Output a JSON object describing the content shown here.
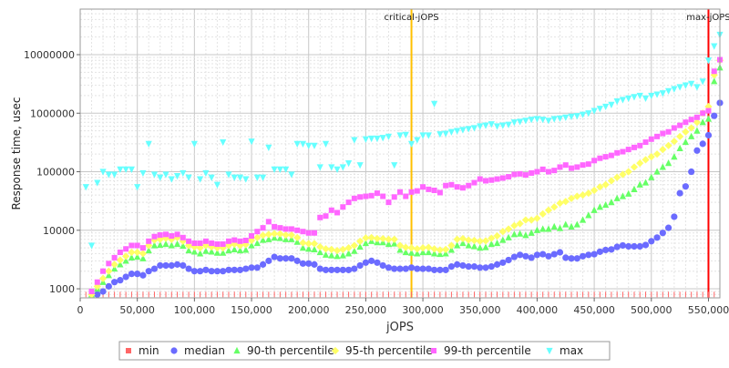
{
  "chart_data": {
    "type": "scatter",
    "title": "",
    "xlabel": "jOPS",
    "ylabel": "Response time, usec",
    "xlim": [
      0,
      560000
    ],
    "ylim": [
      700,
      60000000
    ],
    "y_scale": "log",
    "grid": true,
    "legend_position": "bottom",
    "x_ticks": [
      0,
      50000,
      100000,
      150000,
      200000,
      250000,
      300000,
      350000,
      400000,
      450000,
      500000,
      550000
    ],
    "x_tick_labels": [
      "0",
      "50,000",
      "100,000",
      "150,000",
      "200,000",
      "250,000",
      "300,000",
      "350,000",
      "400,000",
      "450,000",
      "500,000",
      "550,000"
    ],
    "y_ticks": [
      1000,
      10000,
      100000,
      1000000,
      10000000
    ],
    "y_tick_labels": [
      "1000",
      "10000",
      "100000",
      "1000000",
      "10000000"
    ],
    "vlines": [
      {
        "label": "critical-jOPS",
        "x": 290000,
        "color": "#ffc000"
      },
      {
        "label": "max-jOPS",
        "x": 550000,
        "color": "#ff0000"
      }
    ],
    "x": [
      5000,
      10000,
      15000,
      20000,
      25000,
      30000,
      35000,
      40000,
      45000,
      50000,
      55000,
      60000,
      65000,
      70000,
      75000,
      80000,
      85000,
      90000,
      95000,
      100000,
      105000,
      110000,
      115000,
      120000,
      125000,
      130000,
      135000,
      140000,
      145000,
      150000,
      155000,
      160000,
      165000,
      170000,
      175000,
      180000,
      185000,
      190000,
      195000,
      200000,
      205000,
      210000,
      215000,
      220000,
      225000,
      230000,
      235000,
      240000,
      245000,
      250000,
      255000,
      260000,
      265000,
      270000,
      275000,
      280000,
      285000,
      290000,
      295000,
      300000,
      305000,
      310000,
      315000,
      320000,
      325000,
      330000,
      335000,
      340000,
      345000,
      350000,
      355000,
      360000,
      365000,
      370000,
      375000,
      380000,
      385000,
      390000,
      395000,
      400000,
      405000,
      410000,
      415000,
      420000,
      425000,
      430000,
      435000,
      440000,
      445000,
      450000,
      455000,
      460000,
      465000,
      470000,
      475000,
      480000,
      485000,
      490000,
      495000,
      500000,
      505000,
      510000,
      515000,
      520000,
      525000,
      530000,
      535000,
      540000,
      545000,
      550000,
      555000,
      560000
    ],
    "series": [
      {
        "name": "min",
        "color": "#ff6666",
        "marker": "square",
        "values": [
          800,
          800,
          800,
          800,
          800,
          800,
          800,
          800,
          800,
          800,
          800,
          800,
          800,
          800,
          800,
          800,
          800,
          800,
          800,
          800,
          800,
          800,
          800,
          800,
          800,
          800,
          800,
          800,
          800,
          800,
          800,
          800,
          800,
          800,
          800,
          800,
          800,
          800,
          800,
          800,
          800,
          800,
          800,
          800,
          800,
          800,
          800,
          800,
          800,
          800,
          800,
          800,
          800,
          800,
          800,
          800,
          800,
          800,
          800,
          800,
          800,
          800,
          800,
          800,
          800,
          800,
          800,
          800,
          800,
          800,
          800,
          800,
          800,
          800,
          800,
          800,
          800,
          800,
          800,
          800,
          800,
          800,
          800,
          800,
          800,
          800,
          800,
          800,
          800,
          800,
          800,
          800,
          800,
          800,
          800,
          800,
          800,
          800,
          800,
          800,
          800,
          800,
          800,
          800,
          800,
          800,
          800,
          800,
          800,
          800,
          800,
          800
        ]
      },
      {
        "name": "median",
        "color": "#6b6bff",
        "marker": "circle",
        "values": [
          null,
          null,
          800,
          900,
          1100,
          1300,
          1400,
          1600,
          1800,
          1800,
          1700,
          2000,
          2200,
          2500,
          2500,
          2500,
          2600,
          2500,
          2200,
          2000,
          2000,
          2100,
          2000,
          2000,
          2000,
          2100,
          2100,
          2100,
          2200,
          2300,
          2300,
          2600,
          3000,
          3500,
          3300,
          3300,
          3300,
          3000,
          2700,
          2700,
          2600,
          2200,
          2100,
          2100,
          2100,
          2100,
          2100,
          2200,
          2500,
          2800,
          3000,
          2800,
          2500,
          2300,
          2200,
          2200,
          2200,
          2300,
          2200,
          2200,
          2200,
          2100,
          2100,
          2100,
          2400,
          2600,
          2500,
          2400,
          2400,
          2300,
          2300,
          2400,
          2600,
          2800,
          3100,
          3500,
          3800,
          3600,
          3400,
          3800,
          3900,
          3600,
          3900,
          4200,
          3400,
          3300,
          3300,
          3600,
          3800,
          3900,
          4300,
          4600,
          4700,
          5200,
          5500,
          5300,
          5300,
          5300,
          5600,
          6500,
          7500,
          9000,
          11000,
          17000,
          43000,
          56000,
          100000,
          230000,
          300000,
          420000,
          900000,
          1500000
        ]
      },
      {
        "name": "90-th percentile",
        "color": "#66ff66",
        "marker": "triangle",
        "values": [
          null,
          800,
          1000,
          1300,
          1700,
          2200,
          2600,
          3000,
          3400,
          3500,
          3300,
          4500,
          5500,
          5600,
          5800,
          5500,
          5800,
          5400,
          4500,
          4300,
          4000,
          4400,
          4300,
          4100,
          4100,
          4500,
          4700,
          4500,
          4600,
          5500,
          6000,
          6800,
          7000,
          7400,
          7300,
          7000,
          7000,
          6300,
          5000,
          4800,
          4700,
          4200,
          3800,
          3700,
          3600,
          3700,
          4000,
          4400,
          5200,
          6000,
          6500,
          6200,
          6200,
          5800,
          5900,
          4600,
          4200,
          4100,
          4000,
          4200,
          4200,
          4000,
          3900,
          4000,
          4600,
          5500,
          6000,
          5500,
          5300,
          5000,
          5100,
          5800,
          6000,
          6800,
          7500,
          8500,
          8700,
          8200,
          9000,
          10000,
          10500,
          10500,
          11500,
          10800,
          12500,
          11500,
          12500,
          15000,
          18000,
          22000,
          25000,
          27000,
          30000,
          35000,
          38000,
          42000,
          50000,
          60000,
          65000,
          80000,
          100000,
          120000,
          140000,
          180000,
          250000,
          320000,
          400000,
          500000,
          700000,
          800000,
          3500000,
          6000000
        ]
      },
      {
        "name": "95-th percentile",
        "color": "#ffff66",
        "marker": "diamond",
        "values": [
          null,
          800,
          1100,
          1500,
          2000,
          2600,
          3100,
          3600,
          4200,
          4200,
          4000,
          5500,
          6800,
          7000,
          7300,
          7000,
          7500,
          6500,
          5500,
          5200,
          5000,
          5500,
          5200,
          5000,
          5000,
          5500,
          5800,
          5500,
          5700,
          6700,
          7500,
          8200,
          8500,
          8700,
          8700,
          8300,
          8300,
          7500,
          6100,
          5900,
          5900,
          5200,
          4800,
          4700,
          4500,
          4700,
          5000,
          5500,
          6500,
          7400,
          7500,
          7200,
          7200,
          7000,
          7000,
          5500,
          5100,
          5000,
          4800,
          5000,
          5100,
          4800,
          4600,
          4700,
          5500,
          7000,
          7200,
          6800,
          6700,
          6500,
          6600,
          7300,
          8000,
          9500,
          10500,
          12000,
          13000,
          15000,
          15000,
          16000,
          19000,
          22000,
          25000,
          29000,
          31000,
          35000,
          38000,
          40000,
          43000,
          48000,
          55000,
          60000,
          70000,
          80000,
          90000,
          100000,
          120000,
          140000,
          160000,
          180000,
          200000,
          240000,
          280000,
          330000,
          400000,
          480000,
          560000,
          700000,
          1000000,
          1300000,
          4500000,
          8000000
        ]
      },
      {
        "name": "99-th percentile",
        "color": "#ff66ff",
        "marker": "square",
        "values": [
          null,
          900,
          1300,
          2000,
          2700,
          3400,
          4200,
          4800,
          5500,
          5500,
          5000,
          6500,
          7800,
          8300,
          8500,
          8000,
          8500,
          7500,
          6500,
          6000,
          6000,
          6500,
          6000,
          5800,
          5800,
          6500,
          6800,
          6500,
          6700,
          8000,
          9500,
          11000,
          14000,
          11500,
          11000,
          10500,
          10500,
          10000,
          9500,
          9000,
          9000,
          16500,
          17500,
          22000,
          20000,
          25000,
          30000,
          35000,
          37000,
          38000,
          39000,
          43000,
          38000,
          30000,
          37000,
          45000,
          38000,
          45000,
          47000,
          55000,
          50000,
          48000,
          44000,
          58000,
          60000,
          55000,
          53000,
          58000,
          65000,
          75000,
          70000,
          72000,
          75000,
          78000,
          82000,
          90000,
          92000,
          88000,
          95000,
          100000,
          110000,
          100000,
          105000,
          120000,
          130000,
          115000,
          120000,
          130000,
          135000,
          155000,
          170000,
          180000,
          190000,
          210000,
          220000,
          240000,
          260000,
          280000,
          320000,
          360000,
          400000,
          450000,
          480000,
          560000,
          620000,
          700000,
          780000,
          850000,
          1000000,
          1100000,
          5200000,
          8200000
        ]
      },
      {
        "name": "max",
        "color": "#66ffff",
        "marker": "triangle-down",
        "values": [
          55000,
          5500,
          65000,
          100000,
          90000,
          90000,
          110000,
          110000,
          110000,
          55000,
          95000,
          300000,
          90000,
          80000,
          90000,
          75000,
          85000,
          95000,
          80000,
          300000,
          75000,
          95000,
          80000,
          60000,
          320000,
          90000,
          80000,
          80000,
          75000,
          330000,
          80000,
          80000,
          260000,
          110000,
          110000,
          110000,
          90000,
          300000,
          300000,
          280000,
          280000,
          120000,
          300000,
          120000,
          110000,
          120000,
          140000,
          350000,
          130000,
          360000,
          370000,
          370000,
          380000,
          400000,
          130000,
          420000,
          430000,
          300000,
          350000,
          420000,
          420000,
          1450000,
          440000,
          450000,
          480000,
          500000,
          520000,
          540000,
          560000,
          600000,
          620000,
          650000,
          600000,
          620000,
          640000,
          700000,
          720000,
          750000,
          780000,
          800000,
          780000,
          750000,
          800000,
          820000,
          850000,
          880000,
          900000,
          950000,
          1000000,
          1100000,
          1200000,
          1300000,
          1400000,
          1600000,
          1700000,
          1800000,
          1900000,
          2000000,
          1800000,
          2000000,
          2100000,
          2200000,
          2400000,
          2600000,
          2800000,
          3000000,
          3200000,
          2800000,
          3500000,
          8000000,
          14000000,
          22000000
        ]
      }
    ]
  }
}
